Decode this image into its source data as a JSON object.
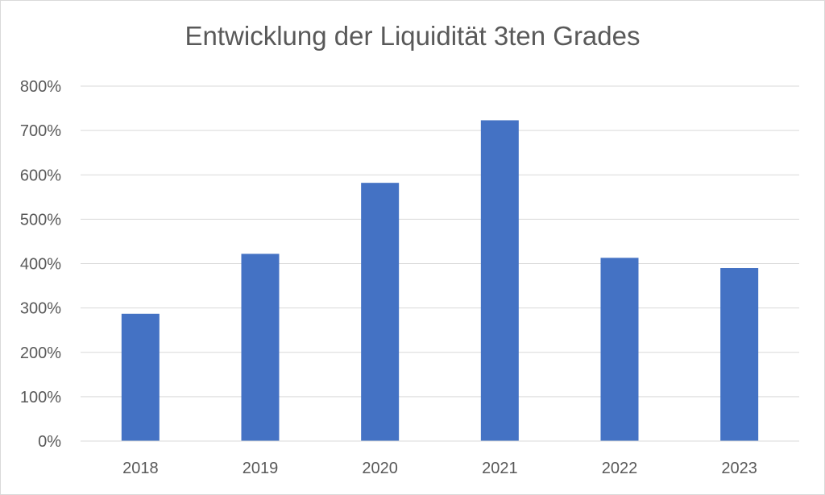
{
  "chart_data": {
    "type": "bar",
    "title": "Entwicklung der Liquidität 3ten Grades",
    "xlabel": "",
    "ylabel": "",
    "categories": [
      "2018",
      "2019",
      "2020",
      "2021",
      "2022",
      "2023"
    ],
    "values": [
      287,
      422,
      582,
      723,
      413,
      390
    ],
    "unit": "%",
    "ylim": [
      0,
      800
    ],
    "ytick_step": 100,
    "yticks": [
      "0%",
      "100%",
      "200%",
      "300%",
      "400%",
      "500%",
      "600%",
      "700%",
      "800%"
    ],
    "grid": true,
    "legend": "none",
    "colors": {
      "bar": "#4472c4",
      "grid": "#d9d9d9",
      "text": "#595959",
      "border": "#d9d9d9"
    }
  }
}
